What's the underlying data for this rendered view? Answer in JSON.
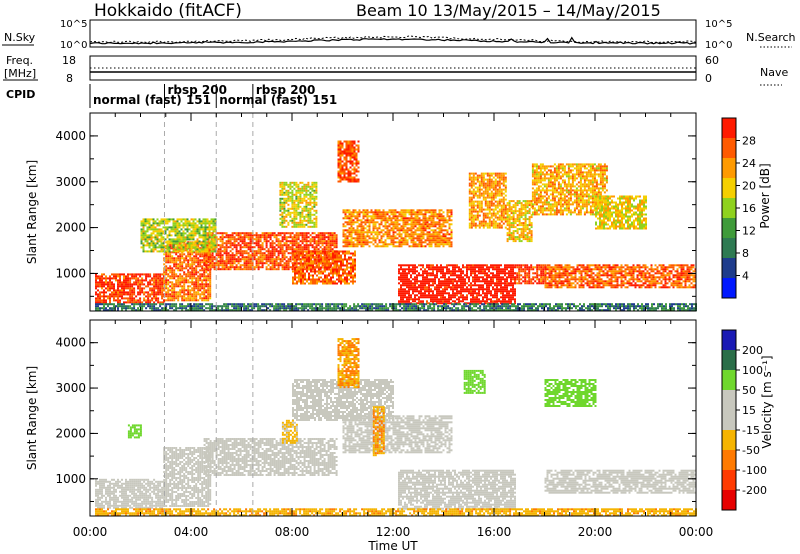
{
  "header": {
    "station": "Hokkaido (fitACF)",
    "beam_and_dates": "Beam 10 13/May/2015 – 14/May/2015"
  },
  "top_panels": {
    "nsky_label": "N.Sky",
    "nsearch_label": "N.Search",
    "noise_ticks_left": [
      "10^5",
      "10^0"
    ],
    "noise_ticks_right": [
      "10^5",
      "10^0"
    ],
    "freq_label_line1": "Freq.",
    "freq_label_line2": "[MHz]",
    "freq_ticks_left": [
      "18",
      "8"
    ],
    "nave_ticks_right": [
      "60",
      "0"
    ],
    "nave_label": "Nave",
    "cpid_label": "CPID",
    "cpid_segments": [
      {
        "start_hour": 0.0,
        "text": "normal (fast) 151"
      },
      {
        "start_hour": 2.95,
        "text": "rbsp 200"
      },
      {
        "start_hour": 5.0,
        "text": "normal (fast) 151"
      },
      {
        "start_hour": 6.45,
        "text": "rbsp 200"
      }
    ]
  },
  "colors": {
    "power_scale": [
      "#0018ff",
      "#1e3c8c",
      "#2e7a52",
      "#3f9b3a",
      "#8fd21e",
      "#f5cf00",
      "#ff9a00",
      "#ff5a00",
      "#ff1a00"
    ],
    "velocity_scale": [
      "#1a1ab4",
      "#2a6e48",
      "#6fd72d",
      "#c8c8be",
      "#c8c8be",
      "#f5b400",
      "#ff7a00",
      "#ff3a00",
      "#e60000"
    ]
  },
  "chart_data": [
    {
      "type": "heatmap",
      "title": "",
      "xlabel": "Time UT",
      "ylabel": "Slant Range [km]",
      "colorbar_label": "Power [dB]",
      "colorbar_ticks": [
        "28",
        "24",
        "20",
        "16",
        "12",
        "8",
        "4"
      ],
      "x_ticks": [
        "00:00",
        "04:00",
        "08:00",
        "12:00",
        "16:00",
        "20:00",
        "00:00"
      ],
      "y_ticks": [
        "1000",
        "2000",
        "3000",
        "4000"
      ],
      "xlim_hours": [
        0,
        24
      ],
      "ylim_km": [
        180,
        4500
      ],
      "dashed_vertical_lines_hours": [
        2.95,
        5.0,
        6.45
      ],
      "regions": [
        {
          "t0": 0.2,
          "t1": 2.9,
          "r0": 350,
          "r1": 1000,
          "power": 27
        },
        {
          "t0": 2.9,
          "t1": 4.8,
          "r0": 400,
          "r1": 1700,
          "power": 24
        },
        {
          "t0": 4.5,
          "t1": 9.8,
          "r0": 1100,
          "r1": 1900,
          "power": 26
        },
        {
          "t0": 8.0,
          "t1": 10.5,
          "r0": 800,
          "r1": 1500,
          "power": 25
        },
        {
          "t0": 10.0,
          "t1": 14.3,
          "r0": 1600,
          "r1": 2400,
          "power": 23
        },
        {
          "t0": 12.2,
          "t1": 16.8,
          "r0": 350,
          "r1": 1200,
          "power": 30
        },
        {
          "t0": 16.8,
          "t1": 18.0,
          "r0": 800,
          "r1": 1200,
          "power": 27
        },
        {
          "t0": 18.0,
          "t1": 24.0,
          "r0": 700,
          "r1": 1200,
          "power": 25
        },
        {
          "t0": 15.0,
          "t1": 16.5,
          "r0": 2000,
          "r1": 3200,
          "power": 22
        },
        {
          "t0": 16.5,
          "t1": 17.5,
          "r0": 1700,
          "r1": 2600,
          "power": 20
        },
        {
          "t0": 17.5,
          "t1": 20.5,
          "r0": 2300,
          "r1": 3400,
          "power": 21
        },
        {
          "t0": 20.0,
          "t1": 22.0,
          "r0": 2000,
          "r1": 2700,
          "power": 19
        },
        {
          "t0": 7.5,
          "t1": 9.0,
          "r0": 2000,
          "r1": 3000,
          "power": 18
        },
        {
          "t0": 9.8,
          "t1": 10.6,
          "r0": 3000,
          "r1": 3900,
          "power": 26
        },
        {
          "t0": 0.2,
          "t1": 24.0,
          "r0": 200,
          "r1": 350,
          "power": 10
        },
        {
          "t0": 2.0,
          "t1": 5.0,
          "r0": 1500,
          "r1": 2200,
          "power": 17
        }
      ]
    },
    {
      "type": "heatmap",
      "title": "",
      "xlabel": "Time UT",
      "ylabel": "Slant Range [km]",
      "colorbar_label": "Velocity [m s⁻¹]",
      "colorbar_ticks": [
        "200",
        "100",
        "50",
        "15",
        "-15",
        "-50",
        "-100",
        "-200"
      ],
      "x_ticks": [
        "00:00",
        "04:00",
        "08:00",
        "12:00",
        "16:00",
        "20:00",
        "00:00"
      ],
      "y_ticks": [
        "1000",
        "2000",
        "3000",
        "4000"
      ],
      "xlim_hours": [
        0,
        24
      ],
      "ylim_km": [
        180,
        4500
      ],
      "dashed_vertical_lines_hours": [
        2.95,
        5.0,
        6.45
      ],
      "regions": [
        {
          "t0": 0.2,
          "t1": 2.9,
          "r0": 350,
          "r1": 1000,
          "velocity": 0
        },
        {
          "t0": 2.9,
          "t1": 4.8,
          "r0": 400,
          "r1": 1700,
          "velocity": 0
        },
        {
          "t0": 4.5,
          "t1": 9.8,
          "r0": 1100,
          "r1": 1900,
          "velocity": 0
        },
        {
          "t0": 10.0,
          "t1": 14.3,
          "r0": 1600,
          "r1": 2400,
          "velocity": 0
        },
        {
          "t0": 12.2,
          "t1": 16.8,
          "r0": 350,
          "r1": 1200,
          "velocity": 0
        },
        {
          "t0": 18.0,
          "t1": 24.0,
          "r0": 700,
          "r1": 1200,
          "velocity": 0
        },
        {
          "t0": 8.0,
          "t1": 12.0,
          "r0": 2300,
          "r1": 3200,
          "velocity": 0
        },
        {
          "t0": 18.0,
          "t1": 20.0,
          "r0": 2600,
          "r1": 3200,
          "velocity": 60
        },
        {
          "t0": 14.8,
          "t1": 15.6,
          "r0": 2900,
          "r1": 3400,
          "velocity": 60
        },
        {
          "t0": 9.8,
          "t1": 10.6,
          "r0": 3000,
          "r1": 4100,
          "velocity": -60
        },
        {
          "t0": 11.2,
          "t1": 11.6,
          "r0": 1500,
          "r1": 2600,
          "velocity": -60
        },
        {
          "t0": 7.6,
          "t1": 8.2,
          "r0": 1800,
          "r1": 2300,
          "velocity": -30
        },
        {
          "t0": 1.5,
          "t1": 2.0,
          "r0": 1900,
          "r1": 2200,
          "velocity": 60
        },
        {
          "t0": 0.2,
          "t1": 24.0,
          "r0": 200,
          "r1": 350,
          "velocity": -50
        }
      ]
    }
  ]
}
